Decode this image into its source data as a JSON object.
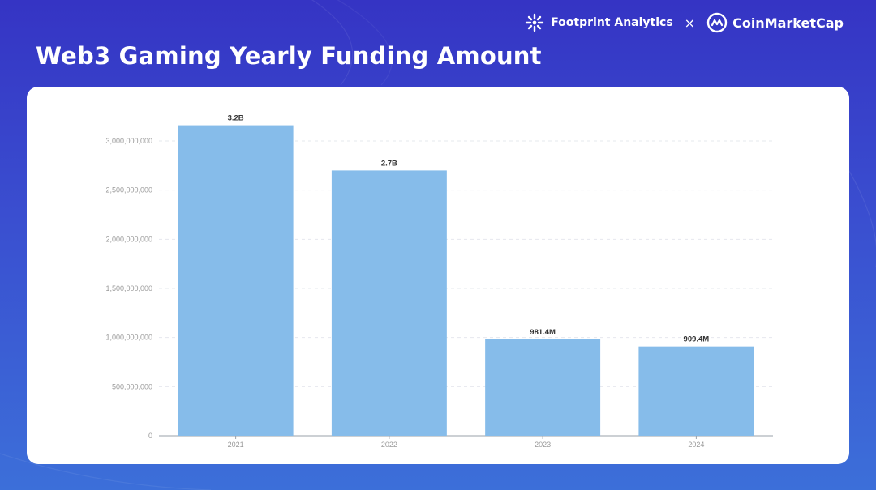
{
  "header": {
    "title": "Web3 Gaming Yearly Funding Amount",
    "brand_primary": "Footprint Analytics",
    "brand_separator": "×",
    "brand_secondary": "CoinMarketCap"
  },
  "chart_data": {
    "type": "bar",
    "title": "",
    "xlabel": "",
    "ylabel": "",
    "categories": [
      "2021",
      "2022",
      "2023",
      "2024"
    ],
    "values": [
      3160000000,
      2700000000,
      981400000,
      909400000
    ],
    "value_labels": [
      "3.2B",
      "2.7B",
      "981.4M",
      "909.4M"
    ],
    "ylim": [
      0,
      3000000000
    ],
    "yticks": [
      0,
      500000000,
      1000000000,
      1500000000,
      2000000000,
      2500000000,
      3000000000
    ],
    "ytick_labels": [
      "0",
      "500,000,000",
      "1,000,000,000",
      "1,500,000,000",
      "2,000,000,000",
      "2,500,000,000",
      "3,000,000,000"
    ],
    "grid": true,
    "colors": {
      "bar": "#86bcea",
      "grid": "#e6e8ee",
      "axis": "#9aa0aa",
      "label": "#333333",
      "tick": "#999999"
    }
  }
}
